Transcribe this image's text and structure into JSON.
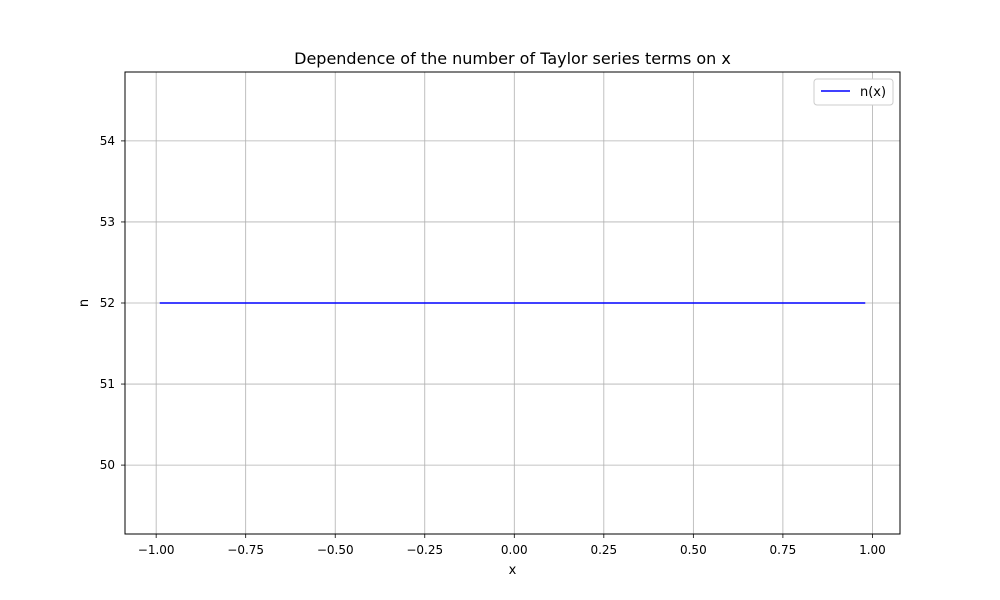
{
  "chart_data": {
    "type": "line",
    "title": "Dependence of the number of Taylor series terms on x",
    "xlabel": "x",
    "ylabel": "n",
    "xlim": [
      -1.087,
      1.077
    ],
    "ylim": [
      49.15,
      54.85
    ],
    "xticks": [
      -1.0,
      -0.75,
      -0.5,
      -0.25,
      0.0,
      0.25,
      0.5,
      0.75,
      1.0
    ],
    "xtick_labels": [
      "−1.00",
      "−0.75",
      "−0.50",
      "−0.25",
      "0.00",
      "0.25",
      "0.50",
      "0.75",
      "1.00"
    ],
    "yticks": [
      50,
      51,
      52,
      53,
      54
    ],
    "ytick_labels": [
      "50",
      "51",
      "52",
      "53",
      "54"
    ],
    "grid": true,
    "legend_position": "top-right",
    "series": [
      {
        "name": "n(x)",
        "color": "#0000ff",
        "x": [
          -0.99,
          0.98
        ],
        "y": [
          52,
          52
        ]
      }
    ]
  }
}
